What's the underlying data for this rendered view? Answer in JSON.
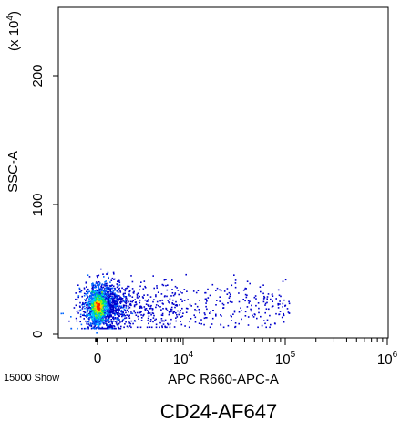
{
  "chart_data": {
    "type": "scatter",
    "style": "density-dot-plot",
    "caption": "CD24-AF647",
    "events_label": "15000 Show",
    "xlabel": "APC R660-APC-A",
    "ylabel": "SSC-A",
    "y_multiplier": "(x 10^4)",
    "x_scale": "biexponential",
    "x_ticks": [
      {
        "value": 0,
        "base": "0",
        "exp": ""
      },
      {
        "value": 10000,
        "base": "10",
        "exp": "4"
      },
      {
        "value": 100000,
        "base": "10",
        "exp": "5"
      },
      {
        "value": 1000000,
        "base": "10",
        "exp": "6"
      }
    ],
    "y_ticks": [
      0,
      100,
      200
    ],
    "ylim": [
      0,
      255
    ],
    "population": {
      "description": "single dense population at x near 0, SSC 10-50 (x10^4), tail extending right to about 10^5",
      "center": {
        "x": 0,
        "y": 22
      },
      "y_range": [
        5,
        50
      ],
      "x_tail_max": 300000
    },
    "density_colors": [
      "#0000cc",
      "#0066ff",
      "#00ccff",
      "#00e070",
      "#a8f000",
      "#ffd000",
      "#ff2000"
    ],
    "axis_color": "#000000",
    "background": "#ffffff"
  }
}
